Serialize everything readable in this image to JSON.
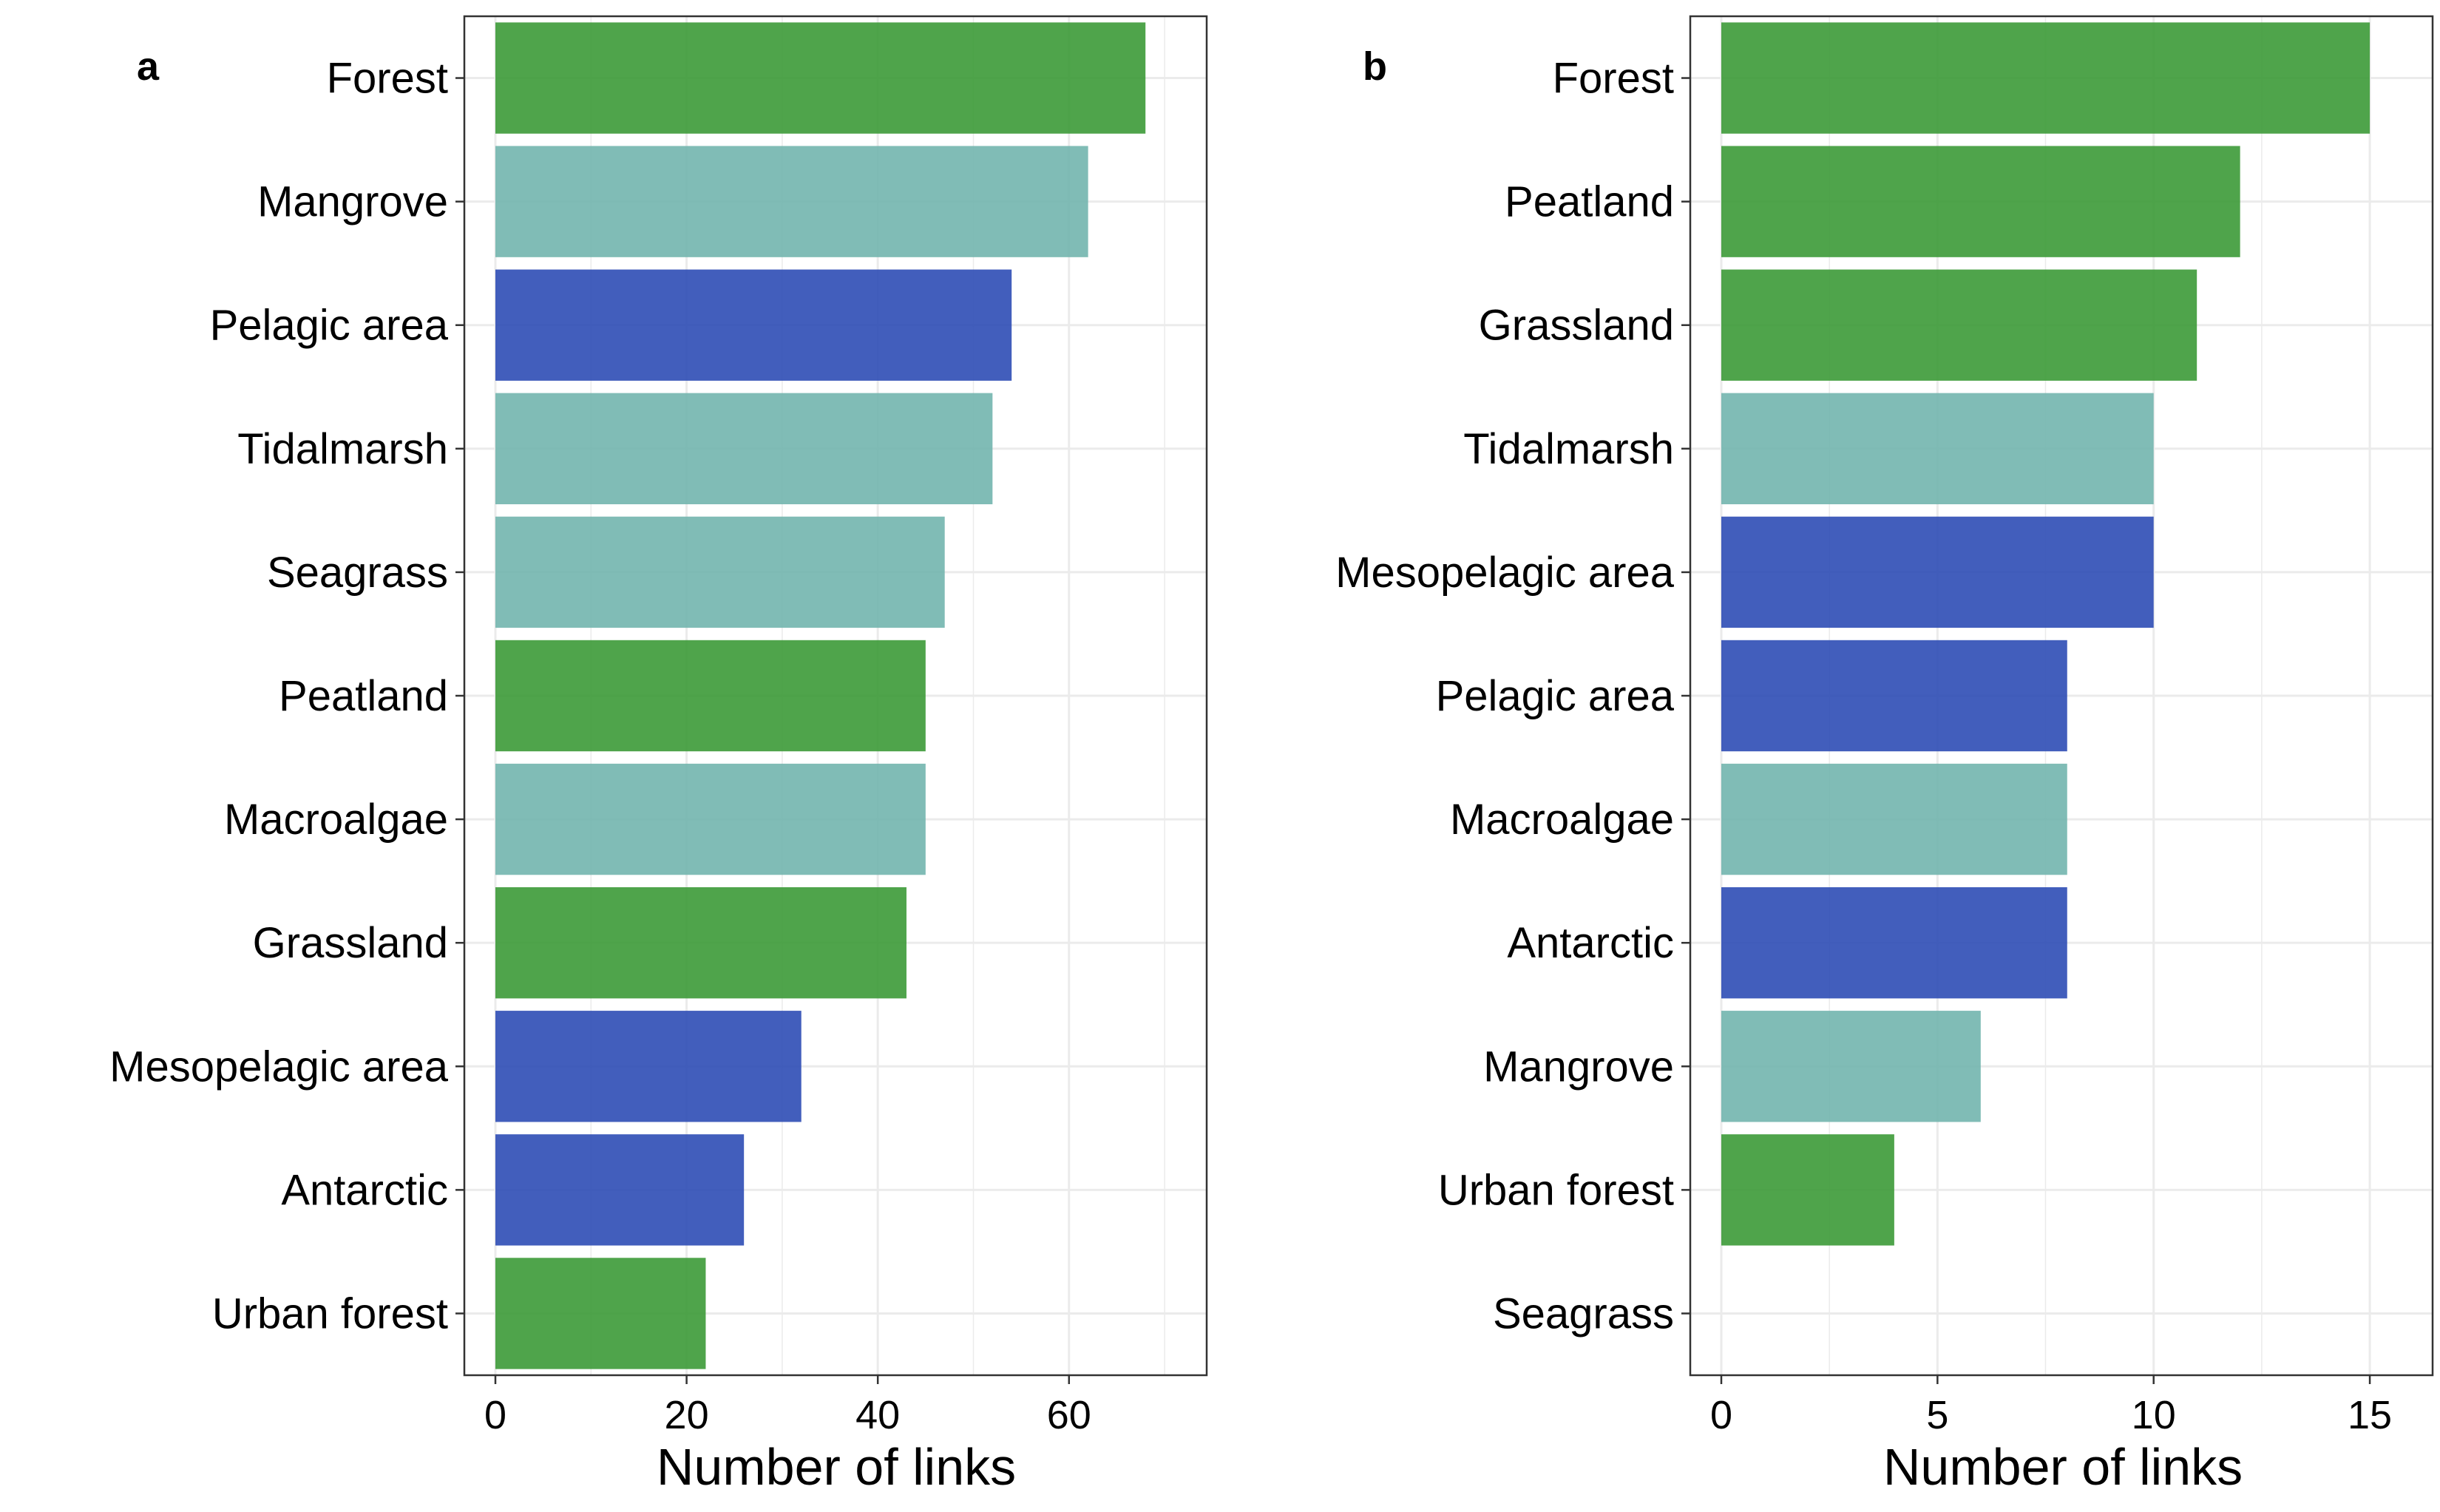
{
  "figure": {
    "colors": {
      "terrestrial": "#3c9a37",
      "coastal": "#72b5ae",
      "marine": "#2d4cb5"
    },
    "panels": [
      {
        "tag": "a",
        "xlabel": "Number of links"
      },
      {
        "tag": "b",
        "xlabel": "Number of links"
      }
    ]
  },
  "chart_data": [
    {
      "type": "bar",
      "orientation": "horizontal",
      "panel": "a",
      "xlabel": "Number of links",
      "ylabel": "",
      "xlim": [
        0,
        71
      ],
      "xticks": [
        0,
        20,
        40,
        60
      ],
      "grid": true,
      "categories": [
        "Forest",
        "Mangrove",
        "Pelagic area",
        "Tidalmarsh",
        "Seagrass",
        "Peatland",
        "Macroalgae",
        "Grassland",
        "Mesopelagic area",
        "Antarctic",
        "Urban forest"
      ],
      "values": [
        68,
        62,
        54,
        52,
        47,
        45,
        45,
        43,
        32,
        26,
        22
      ],
      "bar_colors": [
        "#3c9a37",
        "#72b5ae",
        "#2d4cb5",
        "#72b5ae",
        "#72b5ae",
        "#3c9a37",
        "#72b5ae",
        "#3c9a37",
        "#2d4cb5",
        "#2d4cb5",
        "#3c9a37"
      ]
    },
    {
      "type": "bar",
      "orientation": "horizontal",
      "panel": "b",
      "xlabel": "Number of links",
      "ylabel": "",
      "xlim": [
        0,
        15.7
      ],
      "xticks": [
        0,
        5,
        10,
        15
      ],
      "grid": true,
      "categories": [
        "Forest",
        "Peatland",
        "Grassland",
        "Tidalmarsh",
        "Mesopelagic area",
        "Pelagic area",
        "Macroalgae",
        "Antarctic",
        "Mangrove",
        "Urban forest",
        "Seagrass"
      ],
      "values": [
        15,
        12,
        11,
        10,
        10,
        8,
        8,
        8,
        6,
        4,
        0
      ],
      "bar_colors": [
        "#3c9a37",
        "#3c9a37",
        "#3c9a37",
        "#72b5ae",
        "#2d4cb5",
        "#2d4cb5",
        "#72b5ae",
        "#2d4cb5",
        "#72b5ae",
        "#3c9a37",
        "#72b5ae"
      ]
    }
  ]
}
